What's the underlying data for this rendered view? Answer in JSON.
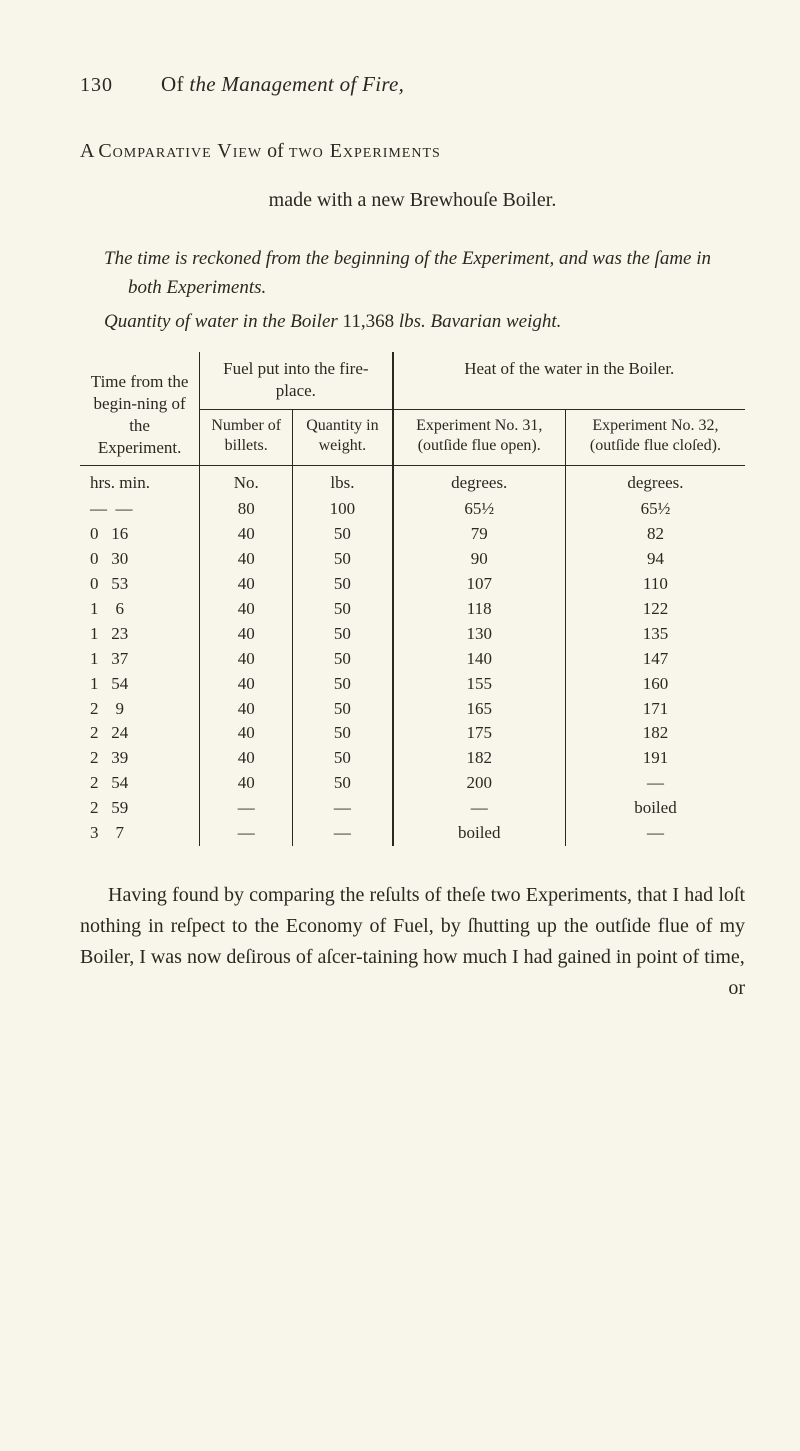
{
  "page_number": "130",
  "running_title_prefix": "Of ",
  "running_title_italic": "the Management of Fire,",
  "subtitle_line1_a": "A ",
  "subtitle_line1_b": "Comparative View",
  "subtitle_line1_c": " of ",
  "subtitle_line1_d": "two Experiments",
  "subtitle_line2": "made with a new Brewhouſe Boiler.",
  "para1": "The time is reckoned from the beginning of the Experiment, and was the ſame in both Experiments.",
  "para2_a": "Quantity of water in the Boiler ",
  "para2_b": "11,368",
  "para2_c": " lbs. Bavarian weight.",
  "table": {
    "top_headers": {
      "time": "Time from the begin-ning of the Experiment.",
      "fuel": "Fuel put into the fire-place.",
      "heat": "Heat of the water in the Boiler."
    },
    "sub_headers": {
      "number": "Number of billets.",
      "quantity": "Quantity in weight.",
      "exp31": "Experiment No. 31, (outſide flue open).",
      "exp32": "Experiment No. 32, (outſide flue cloſed)."
    },
    "unit_row": [
      "hrs. min.",
      "No.",
      "lbs.",
      "degrees.",
      "degrees."
    ],
    "rows": [
      [
        "—  —",
        "80",
        "100",
        "65½",
        "65½"
      ],
      [
        "0   16",
        "40",
        "50",
        "79",
        "82"
      ],
      [
        "0   30",
        "40",
        "50",
        "90",
        "94"
      ],
      [
        "0   53",
        "40",
        "50",
        "107",
        "110"
      ],
      [
        "1    6",
        "40",
        "50",
        "118",
        "122"
      ],
      [
        "1   23",
        "40",
        "50",
        "130",
        "135"
      ],
      [
        "1   37",
        "40",
        "50",
        "140",
        "147"
      ],
      [
        "1   54",
        "40",
        "50",
        "155",
        "160"
      ],
      [
        "2    9",
        "40",
        "50",
        "165",
        "171"
      ],
      [
        "2   24",
        "40",
        "50",
        "175",
        "182"
      ],
      [
        "2   39",
        "40",
        "50",
        "182",
        "191"
      ],
      [
        "2   54",
        "40",
        "50",
        "200",
        "—"
      ],
      [
        "2   59",
        "—",
        "—",
        "—",
        "boiled"
      ],
      [
        "3    7",
        "—",
        "—",
        "boiled",
        "—"
      ]
    ]
  },
  "closing_text": "Having found by comparing the reſults of theſe two Experiments, that I had loſt nothing in reſpect to the Economy of Fuel, by ſhutting up the outſide flue of my Boiler, I was now deſirous of aſcer-taining how much I had gained in point of time,",
  "closing_last": "or"
}
